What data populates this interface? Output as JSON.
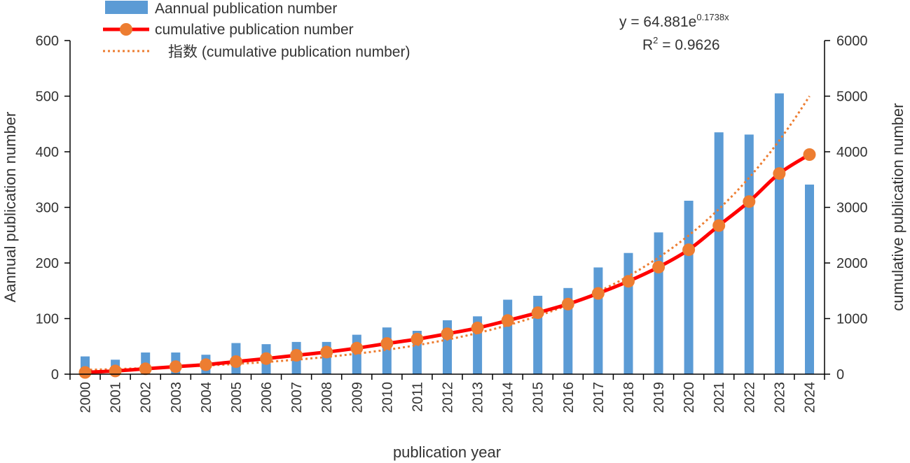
{
  "chart_data": {
    "type": "bar+line",
    "title": "",
    "xlabel": "publication year",
    "ylabel_left": "Aannual publication number",
    "ylabel_right": "cumulative publication number",
    "ylim_left": [
      0,
      600
    ],
    "ylim_right": [
      0,
      6000
    ],
    "yticks_left": [
      "0",
      "100",
      "200",
      "300",
      "400",
      "500",
      "600"
    ],
    "yticks_right": [
      "0",
      "1000",
      "2000",
      "3000",
      "4000",
      "5000",
      "6000"
    ],
    "categories": [
      "2000",
      "2001",
      "2002",
      "2003",
      "2004",
      "2005",
      "2006",
      "2007",
      "2008",
      "2009",
      "2010",
      "2011",
      "2012",
      "2013",
      "2014",
      "2015",
      "2016",
      "2017",
      "2018",
      "2019",
      "2020",
      "2021",
      "2022",
      "2023",
      "2024"
    ],
    "series": [
      {
        "name": "Aannual publication number",
        "type": "bar",
        "axis": "left",
        "color": "#5b9bd5",
        "values": [
          32,
          26,
          39,
          39,
          35,
          56,
          54,
          58,
          58,
          71,
          84,
          78,
          97,
          104,
          134,
          141,
          155,
          192,
          218,
          255,
          312,
          435,
          431,
          505,
          341
        ]
      },
      {
        "name": "cumulative publication number",
        "type": "line",
        "axis": "right",
        "color": "#ff0000",
        "marker_color": "#ed7d31",
        "values": [
          32,
          58,
          97,
          136,
          171,
          227,
          281,
          339,
          397,
          468,
          552,
          630,
          727,
          831,
          965,
          1106,
          1261,
          1453,
          1671,
          1926,
          2238,
          2673,
          3104,
          3609,
          3950
        ]
      },
      {
        "name": "指数 (cumulative publication number)",
        "type": "trendline",
        "axis": "right",
        "color": "#ed7d31",
        "equation": {
          "a": 64.881,
          "b": 0.1738
        }
      }
    ],
    "legend": [
      "Aannual publication number",
      "cumulative publication number",
      "指数 (cumulative publication number)"
    ],
    "legend_position": "top-left",
    "annotation": {
      "eq_prefix": "y = 64.881e",
      "eq_exponent": "0.1738x",
      "r2_label": "R",
      "r2_exp": "2",
      "r2_value": " = 0.9626"
    }
  }
}
